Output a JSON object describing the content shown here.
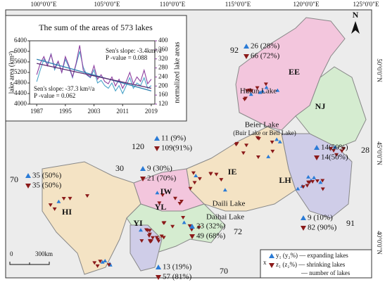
{
  "chart_data": {
    "type": "line",
    "title": "The sum of the areas of 573 lakes",
    "y_label": "lake area (km²)",
    "y2_label": "normalized lake areas",
    "x": [
      1987,
      1988,
      1989,
      1990,
      1991,
      1992,
      1993,
      1994,
      1995,
      1996,
      1997,
      1998,
      1999,
      2000,
      2001,
      2002,
      2003,
      2004,
      2005,
      2006,
      2007,
      2008,
      2009,
      2010,
      2011,
      2012,
      2013,
      2014,
      2015,
      2016,
      2017,
      2018,
      2019
    ],
    "series": [
      {
        "color": "#4aa3c8",
        "values": [
          4850,
          5300,
          5700,
          5500,
          5900,
          5300,
          5600,
          5200,
          5700,
          5400,
          5000,
          5500,
          6000,
          5400,
          5100,
          5000,
          5300,
          4800,
          4900,
          4700,
          4600,
          4800,
          4500,
          4700,
          4400,
          4700,
          5000,
          4600,
          4800,
          4700,
          5000,
          4600,
          4700
        ]
      },
      {
        "color": "#8e3fa0",
        "axis": "y2",
        "values": [
          250,
          300,
          330,
          290,
          340,
          280,
          310,
          260,
          330,
          290,
          240,
          300,
          380,
          270,
          250,
          240,
          290,
          230,
          250,
          220,
          210,
          240,
          200,
          230,
          190,
          220,
          260,
          210,
          240,
          220,
          270,
          210,
          230
        ]
      }
    ],
    "trends": [
      {
        "color": "#2b7fb0",
        "x": [
          1987,
          2019
        ],
        "values": [
          5700,
          4500
        ]
      },
      {
        "color": "#5a2a70",
        "axis": "y2",
        "x": [
          1987,
          2019
        ],
        "values": [
          300,
          190
        ]
      }
    ],
    "annotations": [
      "Sen's slope: -3.4km²/a",
      "P -value = 0.088",
      "Sen's slope: -37.3 km²/a",
      "P -value = 0.062"
    ],
    "xlim": [
      1985,
      2020
    ],
    "xticks": [
      1987,
      1995,
      2003,
      2011,
      2019
    ],
    "ylim": [
      4000,
      6400
    ],
    "yticks": [
      4000,
      4400,
      4800,
      5200,
      5600,
      6000,
      6400
    ],
    "y2lim": [
      120,
      400
    ],
    "y2ticks": [
      120,
      160,
      200,
      240,
      280,
      320,
      360,
      400
    ]
  },
  "map": {
    "lon_labels": [
      "100°0'0\"E",
      "105°0'0\"E",
      "110°0'0\"E",
      "115°0'0\"E",
      "120°0'0\"E",
      "125°0'0\"E"
    ],
    "lat_labels": [
      "50°0'0\"N",
      "45°0'0\"N",
      "40°0'0\"N"
    ],
    "regions": [
      "EE",
      "NJ",
      "IE",
      "LH",
      "IW",
      "HI",
      "YL",
      "YI"
    ],
    "lakes": [
      "Hulun Lake",
      "Beier Lake",
      "(Buir Lake or Bell Lake)",
      "Daili Lake",
      "Daihai Lake"
    ],
    "groups": [
      {
        "count": 92,
        "expanding": "26 (28%)",
        "shrinking": "66 (72%)"
      },
      {
        "count": 120,
        "expanding": "11 (9%)",
        "shrinking": "109(91%)"
      },
      {
        "count": 30,
        "expanding": "9 (30%)",
        "shrinking": "21 (70%)"
      },
      {
        "count": 70,
        "expanding": "35 (50%)",
        "shrinking": "35 (50%)"
      },
      {
        "count": 28,
        "expanding": "14(50%)",
        "shrinking": "14(50%)"
      },
      {
        "count": 91,
        "expanding": "9 (10%)",
        "shrinking": "82 (90%)"
      },
      {
        "count": 72,
        "expanding": "23 (32%)",
        "shrinking": "49 (68%)"
      },
      {
        "count": 70,
        "expanding": "13 (19%)",
        "shrinking": "57 (81%)"
      }
    ],
    "legend": {
      "x": "x",
      "expanding": "y₁ (y₂%) — expanding lakes",
      "shrinking": "z₁ (z₂%) — shrinking lakes",
      "count": "— number of lakes"
    },
    "scale": [
      "0",
      "300km"
    ],
    "north": "N"
  }
}
